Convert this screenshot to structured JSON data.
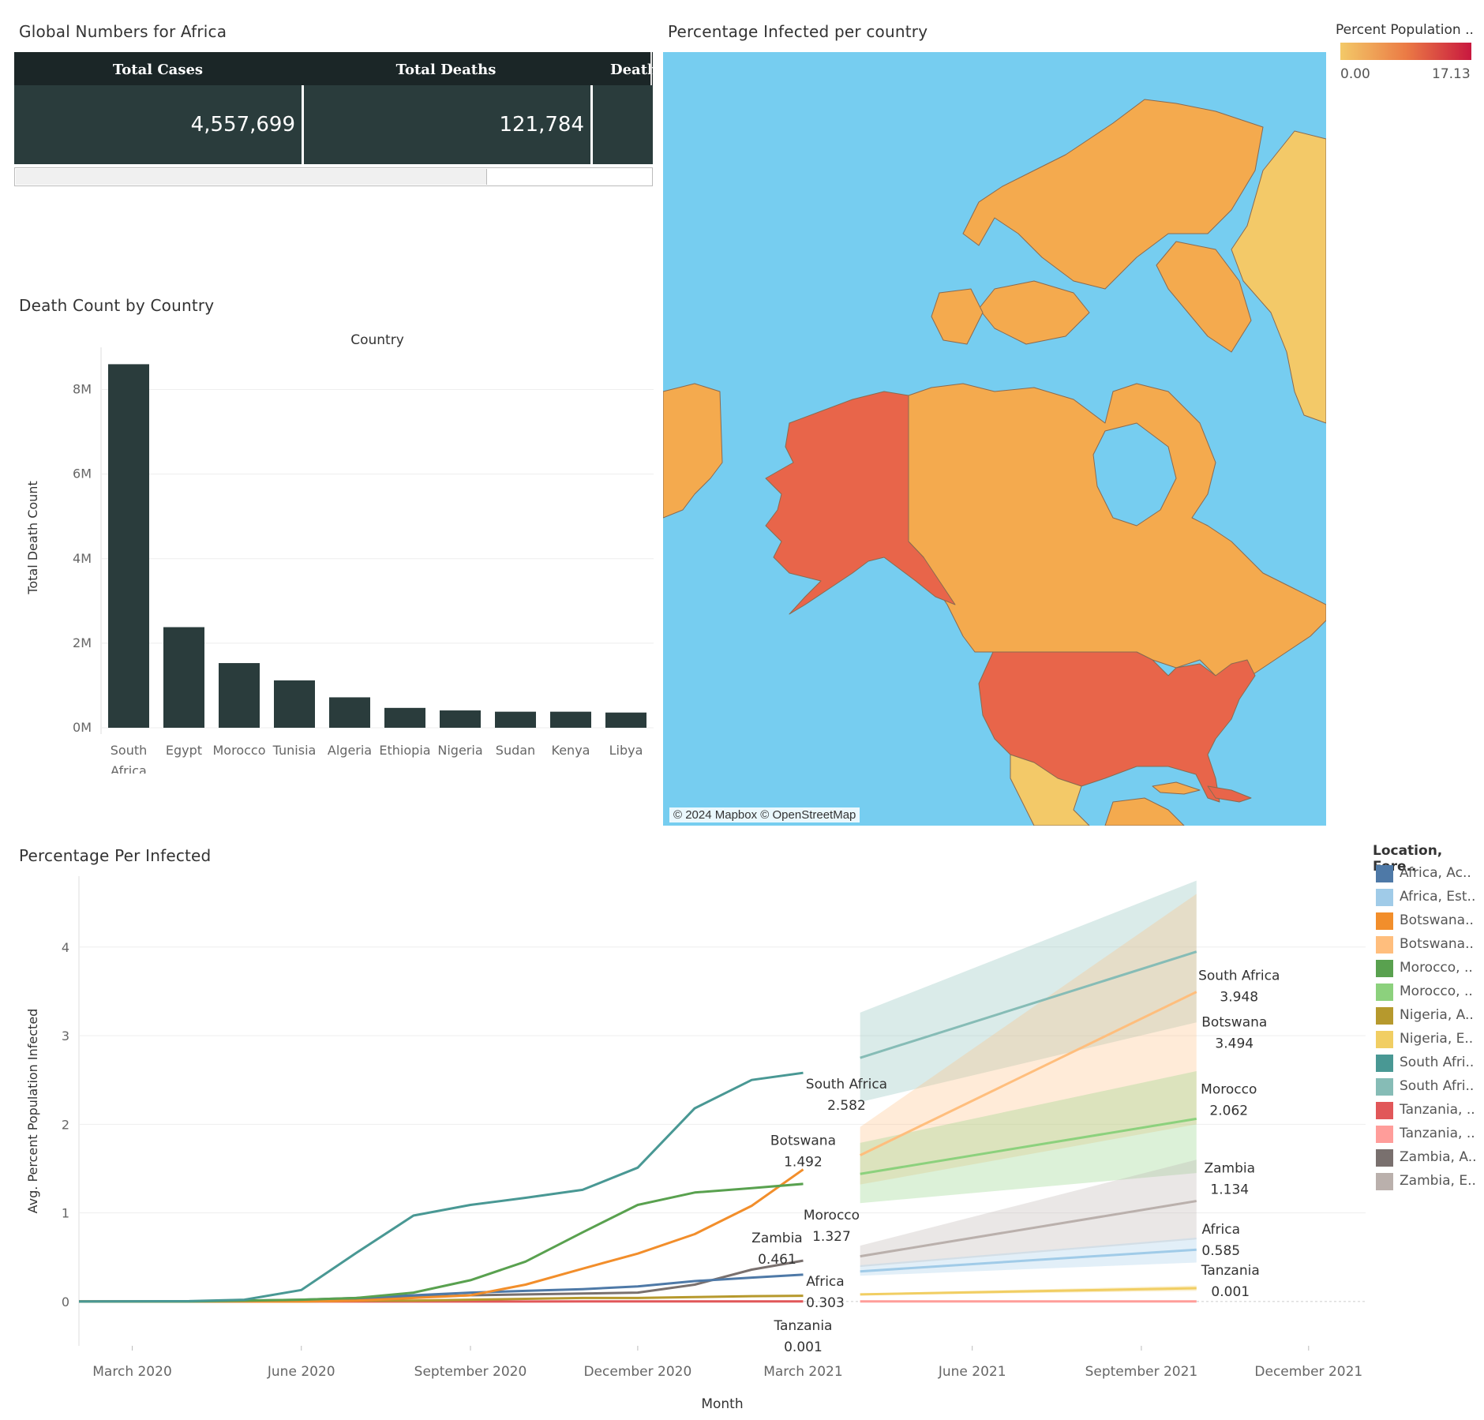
{
  "kpi_section": {
    "title": "Global Numbers for Africa",
    "columns": [
      "Total Cases",
      "Total Deaths",
      "Death Pe"
    ],
    "values": [
      "4,557,699",
      "121,784",
      ""
    ]
  },
  "map_section": {
    "title": "Percentage Infected per country",
    "legend_title": "Percent Population ..",
    "legend_min": "0.00",
    "legend_max": "17.13",
    "credit": "© 2024 Mapbox © OpenStreetMap",
    "colors": {
      "ocean": "#76cdf0",
      "low": "#f3c968",
      "mid": "#f4aa4e",
      "high": "#e8654a",
      "max": "#c8183f"
    }
  },
  "bar_section": {
    "title": "Death Count by Country"
  },
  "line_section": {
    "title": "Percentage Per Infected",
    "legend_title": "Location, Fore..",
    "legend_items": [
      {
        "label": "Africa, Ac..",
        "color": "#4e79a7"
      },
      {
        "label": "Africa, Est..",
        "color": "#a0cbe8"
      },
      {
        "label": "Botswana..",
        "color": "#f28e2b"
      },
      {
        "label": "Botswana..",
        "color": "#ffbe7d"
      },
      {
        "label": "Morocco, ..",
        "color": "#59a14f"
      },
      {
        "label": "Morocco, ..",
        "color": "#8cd17d"
      },
      {
        "label": "Nigeria, A..",
        "color": "#b6992d"
      },
      {
        "label": "Nigeria, E..",
        "color": "#f1ce63"
      },
      {
        "label": "South Afri..",
        "color": "#499894"
      },
      {
        "label": "South Afri..",
        "color": "#86bcb6"
      },
      {
        "label": "Tanzania, ..",
        "color": "#e15759"
      },
      {
        "label": "Tanzania, ..",
        "color": "#ff9d9a"
      },
      {
        "label": "Zambia, A..",
        "color": "#79706e"
      },
      {
        "label": "Zambia, E..",
        "color": "#bab0ac"
      }
    ]
  },
  "chart_data": [
    {
      "type": "bar",
      "title": "Death Count by Country",
      "xlabel": "Country",
      "ylabel": "Total Death Count",
      "categories": [
        "South Africa",
        "Egypt",
        "Morocco",
        "Tunisia",
        "Algeria",
        "Ethiopia",
        "Nigeria",
        "Sudan",
        "Kenya",
        "Libya"
      ],
      "values": [
        8600000,
        2380000,
        1530000,
        1120000,
        720000,
        470000,
        410000,
        380000,
        380000,
        360000
      ],
      "ylim": [
        0,
        9000000
      ],
      "yticks": [
        {
          "v": 0,
          "label": "0M"
        },
        {
          "v": 2000000,
          "label": "2M"
        },
        {
          "v": 4000000,
          "label": "4M"
        },
        {
          "v": 6000000,
          "label": "6M"
        },
        {
          "v": 8000000,
          "label": "8M"
        }
      ],
      "color": "#2a3c3c",
      "grid": true
    },
    {
      "type": "line",
      "title": "Percentage Per Infected",
      "xlabel": "Month",
      "ylabel": "Avg. Percent Population Infected",
      "ylim": [
        -0.5,
        4.8
      ],
      "xlim": [
        "2020-02-01",
        "2022-01-01"
      ],
      "yticks": [
        0,
        1,
        2,
        3,
        4
      ],
      "xticks": [
        {
          "date": "2020-03-01",
          "label": "March 2020"
        },
        {
          "date": "2020-06-01",
          "label": "June 2020"
        },
        {
          "date": "2020-09-01",
          "label": "September 2020"
        },
        {
          "date": "2020-12-01",
          "label": "December 2020"
        },
        {
          "date": "2021-03-01",
          "label": "March 2021"
        },
        {
          "date": "2021-06-01",
          "label": "June 2021"
        },
        {
          "date": "2021-09-01",
          "label": "September 2021"
        },
        {
          "date": "2021-12-01",
          "label": "December 2021"
        }
      ],
      "actual_dates": [
        "2020-02-01",
        "2020-03-01",
        "2020-04-01",
        "2020-05-01",
        "2020-06-01",
        "2020-07-01",
        "2020-08-01",
        "2020-09-01",
        "2020-10-01",
        "2020-11-01",
        "2020-12-01",
        "2021-01-01",
        "2021-02-01",
        "2021-03-01"
      ],
      "series": [
        {
          "color": "#499894",
          "values": [
            0,
            0.002,
            0.004,
            0.02,
            0.13,
            0.55,
            0.97,
            1.09,
            1.17,
            1.26,
            1.51,
            2.18,
            2.5,
            2.58
          ]
        },
        {
          "color": "#59a14f",
          "values": [
            0,
            0.0,
            0.0,
            0.01,
            0.02,
            0.04,
            0.1,
            0.24,
            0.45,
            0.78,
            1.09,
            1.23,
            1.28,
            1.327
          ]
        },
        {
          "color": "#f28e2b",
          "values": [
            0,
            0.0,
            0.0,
            0.0,
            0.0,
            0.01,
            0.04,
            0.07,
            0.19,
            0.37,
            0.54,
            0.76,
            1.08,
            1.49
          ]
        },
        {
          "color": "#4e79a7",
          "values": [
            0,
            0.0,
            0.0,
            0.01,
            0.02,
            0.04,
            0.07,
            0.1,
            0.12,
            0.14,
            0.17,
            0.23,
            0.27,
            0.303
          ]
        },
        {
          "color": "#79706e",
          "values": [
            0,
            0.0,
            0.0,
            0.0,
            0.01,
            0.03,
            0.05,
            0.07,
            0.08,
            0.09,
            0.1,
            0.19,
            0.36,
            0.461
          ]
        },
        {
          "color": "#b6992d",
          "values": [
            0,
            0.0,
            0.0,
            0.0,
            0.0,
            0.01,
            0.01,
            0.02,
            0.03,
            0.04,
            0.04,
            0.05,
            0.06,
            0.065
          ]
        },
        {
          "color": "#e15759",
          "values": [
            0,
            0.0,
            0.0,
            0.0,
            0.0,
            0.0,
            0.0,
            0.0,
            0.0,
            0.001,
            0.001,
            0.001,
            0.001,
            0.001
          ]
        }
      ],
      "forecast_dates": [
        "2021-04-01",
        "2021-10-01"
      ],
      "forecasts": [
        {
          "color": "#86bcb6",
          "values": [
            2.75,
            3.948
          ],
          "lower": [
            2.25,
            3.15
          ],
          "upper": [
            3.26,
            4.75
          ]
        },
        {
          "color": "#ffbe7d",
          "values": [
            1.65,
            3.494
          ],
          "lower": [
            1.32,
            2.0
          ],
          "upper": [
            1.97,
            4.6
          ]
        },
        {
          "color": "#8cd17d",
          "values": [
            1.44,
            2.062
          ],
          "lower": [
            1.11,
            1.45
          ],
          "upper": [
            1.79,
            2.6
          ]
        },
        {
          "color": "#bab0ac",
          "values": [
            0.51,
            1.134
          ],
          "lower": [
            0.39,
            0.7
          ],
          "upper": [
            0.63,
            1.6
          ]
        },
        {
          "color": "#a0cbe8",
          "values": [
            0.34,
            0.585
          ],
          "lower": [
            0.29,
            0.44
          ],
          "upper": [
            0.41,
            0.72
          ]
        },
        {
          "color": "#f1ce63",
          "values": [
            0.08,
            0.15
          ],
          "lower": [
            0.07,
            0.12
          ],
          "upper": [
            0.09,
            0.18
          ]
        },
        {
          "color": "#ff9d9a",
          "values": [
            0.001,
            0.001
          ],
          "lower": [
            -0.005,
            -0.006
          ],
          "upper": [
            0.006,
            0.008
          ]
        }
      ],
      "annotations": [
        {
          "text": "South Africa",
          "value": "2.582",
          "date": "2021-03-01",
          "y": 2.582
        },
        {
          "text": "Botswana",
          "value": "1.492",
          "date": "2021-03-01",
          "y": 1.492
        },
        {
          "text": "Morocco",
          "value": "1.327",
          "date": "2021-03-01",
          "y": 1.327
        },
        {
          "text": "Zambia",
          "value": "0.461",
          "date": "2021-03-01",
          "y": 0.461
        },
        {
          "text": "Africa",
          "value": "0.303",
          "date": "2021-03-01",
          "y": 0.303
        },
        {
          "text": "Tanzania",
          "value": "0.001",
          "date": "2021-03-01",
          "y": 0.001
        },
        {
          "text": "South Africa",
          "value": "3.948",
          "date": "2021-10-01",
          "y": 3.948
        },
        {
          "text": "Botswana",
          "value": "3.494",
          "date": "2021-10-01",
          "y": 3.494
        },
        {
          "text": "Morocco",
          "value": "2.062",
          "date": "2021-10-01",
          "y": 2.062
        },
        {
          "text": "Zambia",
          "value": "1.134",
          "date": "2021-10-01",
          "y": 1.134
        },
        {
          "text": "Africa",
          "value": "0.585",
          "date": "2021-10-01",
          "y": 0.585
        },
        {
          "text": "Tanzania",
          "value": "0.001",
          "date": "2021-10-01",
          "y": 0.001
        }
      ],
      "grid": true
    }
  ]
}
